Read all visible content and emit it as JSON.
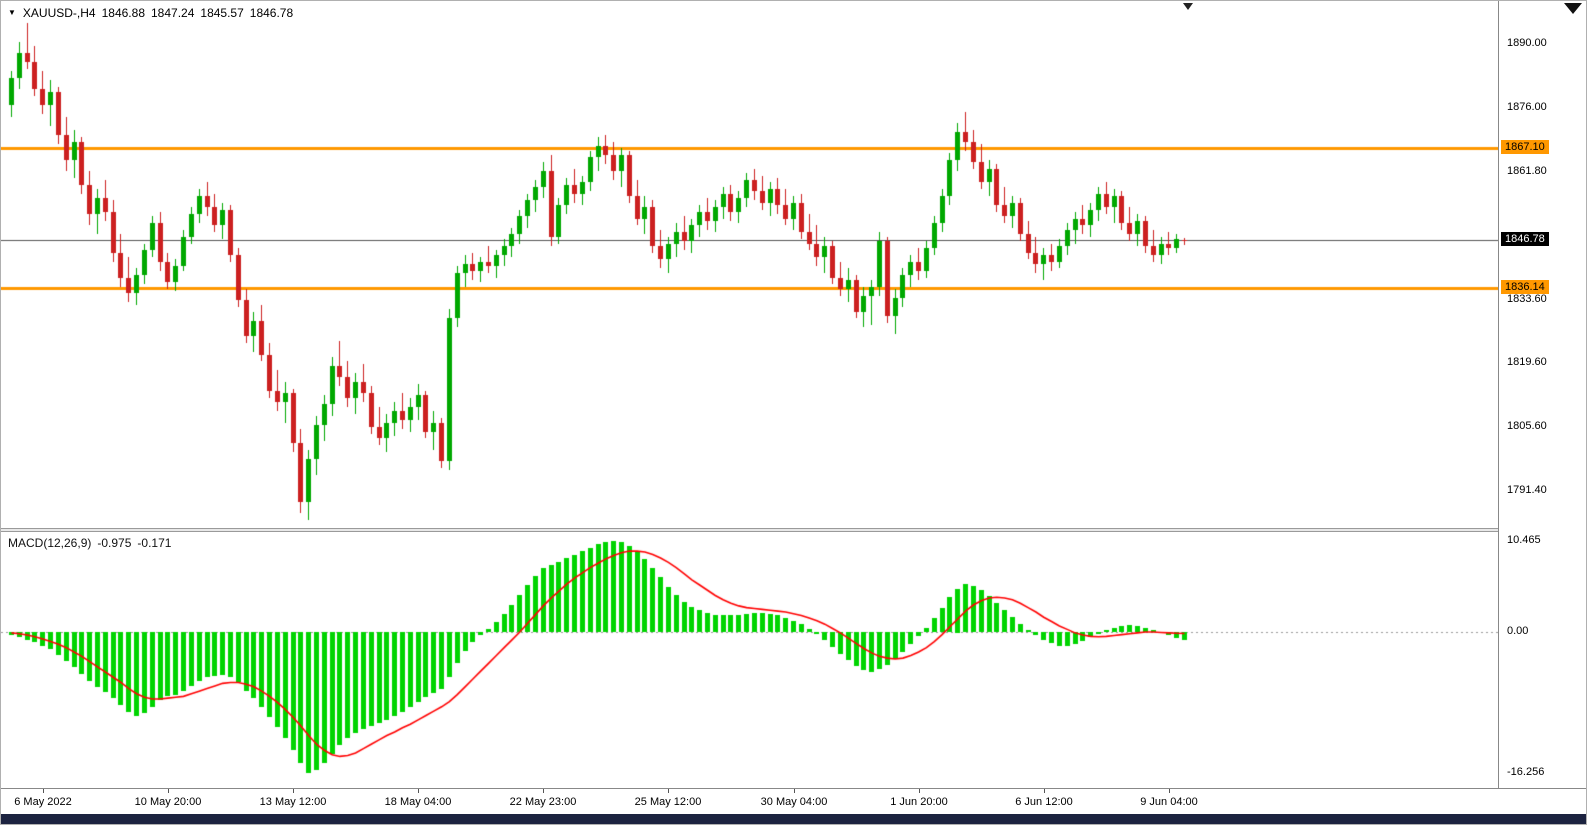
{
  "header": {
    "symbol_timeframe": "XAUUSD-,H4",
    "open": "1846.88",
    "high": "1847.24",
    "low": "1845.57",
    "close": "1846.78"
  },
  "indicator_header": {
    "label": "MACD(12,26,9)",
    "main": "-0.975",
    "signal": "-0.171"
  },
  "icons": {
    "symbol_dropdown": "▼"
  },
  "colors": {
    "up": "#00a800",
    "down": "#cc2020",
    "macd_hist": "#00d400",
    "signal": "#ff0000",
    "hline": "#ff9800",
    "current_line": "#555555",
    "badge_black_bg": "#000000",
    "badge_orange_bg": "#ff9800"
  },
  "chart_data": {
    "type": "candlestick",
    "symbol": "XAUUSD-",
    "timeframe": "H4",
    "current_price": "1846.78",
    "hlines": [
      "1867.10",
      "1836.14"
    ],
    "price_ticks": [
      "1890.00",
      "1876.00",
      "1861.80",
      "1833.60",
      "1819.60",
      "1805.60",
      "1791.40"
    ],
    "time_labels": [
      {
        "text": "6 May 2022",
        "i": 4
      },
      {
        "text": "10 May 20:00",
        "i": 20
      },
      {
        "text": "13 May 12:00",
        "i": 36
      },
      {
        "text": "18 May 04:00",
        "i": 52
      },
      {
        "text": "22 May 23:00",
        "i": 68
      },
      {
        "text": "25 May 12:00",
        "i": 84
      },
      {
        "text": "30 May 04:00",
        "i": 100
      },
      {
        "text": "1 Jun 20:00",
        "i": 116
      },
      {
        "text": "6 Jun 12:00",
        "i": 132
      },
      {
        "text": "9 Jun 04:00",
        "i": 148
      }
    ],
    "candles": [
      [
        1876.5,
        1884,
        1874,
        1882.5
      ],
      [
        1882.5,
        1890.5,
        1880,
        1888
      ],
      [
        1888,
        1894.6,
        1884.5,
        1886
      ],
      [
        1886,
        1889.5,
        1878.5,
        1880
      ],
      [
        1880,
        1884,
        1874.5,
        1876.5
      ],
      [
        1876.5,
        1882,
        1872,
        1879.5
      ],
      [
        1879.5,
        1880.5,
        1868,
        1870
      ],
      [
        1870,
        1874,
        1862,
        1864.5
      ],
      [
        1864.5,
        1871,
        1860.5,
        1868.5
      ],
      [
        1868.5,
        1869.5,
        1857,
        1859
      ],
      [
        1859,
        1862,
        1850,
        1852.5
      ],
      [
        1852.5,
        1858,
        1848,
        1856
      ],
      [
        1856,
        1860,
        1851,
        1853
      ],
      [
        1853,
        1855.5,
        1842,
        1844
      ],
      [
        1844,
        1848,
        1836.5,
        1838.5
      ],
      [
        1838.5,
        1843,
        1833,
        1835
      ],
      [
        1835,
        1840.5,
        1832.5,
        1839
      ],
      [
        1839,
        1846,
        1837,
        1844.5
      ],
      [
        1844.5,
        1852,
        1843,
        1850.5
      ],
      [
        1850.5,
        1853,
        1840,
        1842
      ],
      [
        1842,
        1844,
        1836,
        1837.5
      ],
      [
        1837.5,
        1842.5,
        1835.5,
        1841
      ],
      [
        1841,
        1849,
        1840,
        1847.5
      ],
      [
        1847.5,
        1854,
        1846,
        1852.5
      ],
      [
        1852.5,
        1858,
        1850.5,
        1856.5
      ],
      [
        1856.5,
        1859.5,
        1852,
        1854
      ],
      [
        1854,
        1857,
        1848.5,
        1850
      ],
      [
        1850,
        1855,
        1847,
        1853.5
      ],
      [
        1853.5,
        1854.5,
        1842,
        1843.5
      ],
      [
        1843.5,
        1845,
        1832,
        1833.5
      ],
      [
        1833.5,
        1836,
        1824,
        1825.5
      ],
      [
        1825.5,
        1831,
        1822,
        1829
      ],
      [
        1829,
        1832.5,
        1820,
        1821.5
      ],
      [
        1821.5,
        1824,
        1812,
        1813.5
      ],
      [
        1813.5,
        1818,
        1809,
        1811
      ],
      [
        1811,
        1815.5,
        1806.5,
        1813
      ],
      [
        1813,
        1814,
        1800,
        1802
      ],
      [
        1802,
        1805,
        1786.5,
        1789
      ],
      [
        1789,
        1800.5,
        1785,
        1798.5
      ],
      [
        1798.5,
        1808,
        1795,
        1806
      ],
      [
        1806,
        1812.5,
        1802.5,
        1810.5
      ],
      [
        1810.5,
        1821,
        1808,
        1819
      ],
      [
        1819,
        1824.5,
        1814.5,
        1816.5
      ],
      [
        1816.5,
        1820,
        1810,
        1812
      ],
      [
        1812,
        1817.5,
        1808.5,
        1815.5
      ],
      [
        1815.5,
        1819.5,
        1811,
        1813
      ],
      [
        1813,
        1814.5,
        1804,
        1805.5
      ],
      [
        1805.5,
        1810,
        1801.5,
        1803
      ],
      [
        1803,
        1808.5,
        1800,
        1806.5
      ],
      [
        1806.5,
        1811,
        1803.5,
        1809
      ],
      [
        1809,
        1813,
        1805,
        1807
      ],
      [
        1807,
        1812,
        1804.5,
        1810
      ],
      [
        1810,
        1815,
        1807,
        1812.5
      ],
      [
        1812.5,
        1813.5,
        1803,
        1804.5
      ],
      [
        1804.5,
        1809,
        1800.5,
        1806.5
      ],
      [
        1806.5,
        1807.5,
        1796.5,
        1798
      ],
      [
        1798,
        1831.5,
        1796,
        1829.5
      ],
      [
        1829.5,
        1841,
        1827.5,
        1839.5
      ],
      [
        1839.5,
        1843.5,
        1836.5,
        1841.5
      ],
      [
        1841.5,
        1844,
        1838,
        1840
      ],
      [
        1840,
        1843,
        1837.5,
        1842
      ],
      [
        1842,
        1845.5,
        1839.5,
        1841
      ],
      [
        1841,
        1844.5,
        1838.5,
        1843.5
      ],
      [
        1843.5,
        1847,
        1841,
        1845.5
      ],
      [
        1845.5,
        1849.5,
        1843,
        1848
      ],
      [
        1848,
        1853.5,
        1846,
        1852
      ],
      [
        1852,
        1857,
        1849.5,
        1855.5
      ],
      [
        1855.5,
        1860,
        1853,
        1858.5
      ],
      [
        1858.5,
        1864,
        1856,
        1862
      ],
      [
        1862,
        1865.5,
        1845.5,
        1847.5
      ],
      [
        1847.5,
        1856,
        1846,
        1854.5
      ],
      [
        1854.5,
        1860.5,
        1852.5,
        1859
      ],
      [
        1859,
        1862.5,
        1855,
        1857
      ],
      [
        1857,
        1861,
        1854.5,
        1859.5
      ],
      [
        1859.5,
        1866.5,
        1857.5,
        1865
      ],
      [
        1865,
        1869.5,
        1862,
        1867.5
      ],
      [
        1867.5,
        1870,
        1863.5,
        1865.5
      ],
      [
        1865.5,
        1868.5,
        1860,
        1862
      ],
      [
        1862,
        1867,
        1858.5,
        1865.5
      ],
      [
        1865.5,
        1866.5,
        1855,
        1856.5
      ],
      [
        1856.5,
        1860,
        1850,
        1851.5
      ],
      [
        1851.5,
        1856.5,
        1848,
        1854
      ],
      [
        1854,
        1855.5,
        1844,
        1845.5
      ],
      [
        1845.5,
        1849,
        1840.5,
        1842.5
      ],
      [
        1842.5,
        1847.5,
        1839.5,
        1846
      ],
      [
        1846,
        1850.5,
        1843,
        1848.5
      ],
      [
        1848.5,
        1852,
        1844.5,
        1846.5
      ],
      [
        1846.5,
        1851.5,
        1844,
        1850
      ],
      [
        1850,
        1854.5,
        1847.5,
        1853
      ],
      [
        1853,
        1856,
        1849,
        1851
      ],
      [
        1851,
        1855.5,
        1848.5,
        1854
      ],
      [
        1854,
        1858.5,
        1851.5,
        1857
      ],
      [
        1857,
        1859,
        1851,
        1853
      ],
      [
        1853,
        1857.5,
        1850.5,
        1856
      ],
      [
        1856,
        1861.5,
        1854,
        1860
      ],
      [
        1860,
        1862.5,
        1855.5,
        1857.5
      ],
      [
        1857.5,
        1861,
        1853.5,
        1855
      ],
      [
        1855,
        1859.5,
        1852,
        1858
      ],
      [
        1858,
        1860.5,
        1852.5,
        1854.5
      ],
      [
        1854.5,
        1858,
        1850,
        1851.5
      ],
      [
        1851.5,
        1856.5,
        1849,
        1855
      ],
      [
        1855,
        1857,
        1847,
        1848.5
      ],
      [
        1848.5,
        1852.5,
        1844.5,
        1846
      ],
      [
        1846,
        1850,
        1841,
        1843
      ],
      [
        1843,
        1847.5,
        1839.5,
        1845.5
      ],
      [
        1845.5,
        1846.5,
        1837,
        1838.5
      ],
      [
        1838.5,
        1842,
        1834.5,
        1836
      ],
      [
        1836,
        1840.5,
        1833,
        1838
      ],
      [
        1838,
        1839,
        1829.5,
        1831
      ],
      [
        1831,
        1836.5,
        1827.5,
        1834.5
      ],
      [
        1834.5,
        1838,
        1828,
        1836.5
      ],
      [
        1836.5,
        1848.5,
        1834.5,
        1846.5
      ],
      [
        1846.5,
        1847.5,
        1828.5,
        1830
      ],
      [
        1830,
        1836,
        1826,
        1834
      ],
      [
        1834,
        1840.5,
        1832,
        1839
      ],
      [
        1839,
        1843.5,
        1836.5,
        1842
      ],
      [
        1842,
        1845,
        1838,
        1840
      ],
      [
        1840,
        1846.5,
        1838.5,
        1845
      ],
      [
        1845,
        1852,
        1843.5,
        1850.5
      ],
      [
        1850.5,
        1858,
        1848.5,
        1856.5
      ],
      [
        1856.5,
        1866,
        1854.5,
        1864.5
      ],
      [
        1864.5,
        1872.5,
        1862,
        1870.5
      ],
      [
        1870.5,
        1875,
        1866.5,
        1868.5
      ],
      [
        1868.5,
        1871,
        1862.5,
        1864
      ],
      [
        1864,
        1868,
        1858,
        1859.5
      ],
      [
        1859.5,
        1864.5,
        1856.5,
        1862.5
      ],
      [
        1862.5,
        1863.5,
        1853,
        1854.5
      ],
      [
        1854.5,
        1858.5,
        1850.5,
        1852
      ],
      [
        1852,
        1856.5,
        1849.5,
        1855
      ],
      [
        1855,
        1856,
        1846.5,
        1848
      ],
      [
        1848,
        1851,
        1842.5,
        1844
      ],
      [
        1844,
        1847.5,
        1839.5,
        1841.5
      ],
      [
        1841.5,
        1845,
        1838,
        1843.5
      ],
      [
        1843.5,
        1846,
        1840,
        1842
      ],
      [
        1842,
        1847,
        1840.5,
        1845.5
      ],
      [
        1845.5,
        1850.5,
        1843.5,
        1849
      ],
      [
        1849,
        1853,
        1846,
        1851.5
      ],
      [
        1851.5,
        1854.5,
        1848,
        1850
      ],
      [
        1850,
        1855,
        1847.5,
        1853.5
      ],
      [
        1853.5,
        1858.5,
        1851,
        1857
      ],
      [
        1857,
        1859.5,
        1852.5,
        1854
      ],
      [
        1854,
        1858,
        1850.5,
        1856.5
      ],
      [
        1856.5,
        1857.5,
        1849,
        1850.5
      ],
      [
        1850.5,
        1854,
        1846.5,
        1848
      ],
      [
        1848,
        1852.5,
        1845.5,
        1851
      ],
      [
        1851,
        1852,
        1844,
        1845.5
      ],
      [
        1845.5,
        1849,
        1842,
        1843.5
      ],
      [
        1843.5,
        1847.5,
        1841.5,
        1846
      ],
      [
        1846,
        1848.5,
        1843.5,
        1845
      ],
      [
        1845,
        1848,
        1844,
        1847
      ],
      [
        1846.88,
        1847.24,
        1845.57,
        1846.78
      ]
    ],
    "indicator": {
      "name": "MACD",
      "params": "12,26,9",
      "ticks": [
        "10.465",
        "0.00",
        "-16.256"
      ],
      "histogram": [
        -0.3,
        -0.6,
        -0.9,
        -1.2,
        -1.6,
        -2.0,
        -2.6,
        -3.3,
        -4.0,
        -4.8,
        -5.6,
        -6.3,
        -6.9,
        -7.6,
        -8.4,
        -9.2,
        -9.6,
        -9.3,
        -8.6,
        -7.8,
        -7.4,
        -7.2,
        -6.8,
        -6.2,
        -5.6,
        -5.2,
        -5.0,
        -4.9,
        -5.2,
        -5.8,
        -6.8,
        -7.6,
        -8.6,
        -9.8,
        -10.9,
        -12.2,
        -13.6,
        -15.0,
        -16.256,
        -15.9,
        -15.1,
        -14.0,
        -13.0,
        -12.2,
        -11.6,
        -11.1,
        -10.8,
        -10.5,
        -10.1,
        -9.7,
        -9.2,
        -8.6,
        -8.0,
        -7.5,
        -7.0,
        -6.5,
        -5.2,
        -3.6,
        -2.2,
        -1.2,
        -0.4,
        0.4,
        1.2,
        2.1,
        3.1,
        4.2,
        5.4,
        6.4,
        7.3,
        7.7,
        8.1,
        8.5,
        8.9,
        9.3,
        9.7,
        10.1,
        10.35,
        10.465,
        10.3,
        9.9,
        9.2,
        8.4,
        7.4,
        6.3,
        5.2,
        4.3,
        3.5,
        2.9,
        2.5,
        2.2,
        2.0,
        1.9,
        1.9,
        2.0,
        2.1,
        2.2,
        2.2,
        2.1,
        1.9,
        1.6,
        1.3,
        0.9,
        0.4,
        -0.2,
        -0.9,
        -1.7,
        -2.5,
        -3.2,
        -3.9,
        -4.4,
        -4.6,
        -4.3,
        -3.8,
        -3.1,
        -2.3,
        -1.4,
        -0.5,
        0.5,
        1.6,
        2.8,
        4.0,
        5.0,
        5.5,
        5.3,
        4.8,
        4.1,
        3.3,
        2.5,
        1.7,
        0.9,
        0.2,
        -0.4,
        -0.9,
        -1.3,
        -1.6,
        -1.6,
        -1.4,
        -1.0,
        -0.6,
        -0.2,
        0.2,
        0.5,
        0.7,
        0.8,
        0.7,
        0.5,
        0.2,
        -0.1,
        -0.4,
        -0.7,
        -0.975
      ],
      "signal": [
        -0.1,
        -0.2,
        -0.35,
        -0.55,
        -0.8,
        -1.1,
        -1.4,
        -1.8,
        -2.3,
        -2.8,
        -3.4,
        -4.0,
        -4.6,
        -5.2,
        -5.8,
        -6.5,
        -7.1,
        -7.5,
        -7.7,
        -7.7,
        -7.6,
        -7.5,
        -7.4,
        -7.1,
        -6.8,
        -6.5,
        -6.2,
        -5.9,
        -5.8,
        -5.8,
        -6.0,
        -6.3,
        -6.8,
        -7.4,
        -8.1,
        -8.9,
        -9.8,
        -10.8,
        -11.9,
        -12.9,
        -13.6,
        -14.1,
        -14.3,
        -14.2,
        -13.9,
        -13.4,
        -12.9,
        -12.4,
        -11.9,
        -11.5,
        -11.0,
        -10.6,
        -10.1,
        -9.6,
        -9.1,
        -8.6,
        -8.0,
        -7.2,
        -6.3,
        -5.4,
        -4.5,
        -3.6,
        -2.7,
        -1.8,
        -0.9,
        0.0,
        1.0,
        2.0,
        3.0,
        3.9,
        4.7,
        5.5,
        6.2,
        6.8,
        7.4,
        7.9,
        8.4,
        8.8,
        9.1,
        9.3,
        9.3,
        9.2,
        8.9,
        8.5,
        8.0,
        7.4,
        6.7,
        6.0,
        5.4,
        4.8,
        4.2,
        3.7,
        3.3,
        3.0,
        2.8,
        2.7,
        2.6,
        2.5,
        2.4,
        2.3,
        2.1,
        1.9,
        1.6,
        1.3,
        0.9,
        0.4,
        -0.1,
        -0.7,
        -1.3,
        -1.9,
        -2.4,
        -2.8,
        -3.0,
        -3.1,
        -3.0,
        -2.7,
        -2.3,
        -1.8,
        -1.1,
        -0.3,
        0.6,
        1.5,
        2.4,
        3.1,
        3.6,
        3.9,
        4.0,
        3.9,
        3.7,
        3.3,
        2.8,
        2.3,
        1.7,
        1.2,
        0.7,
        0.3,
        -0.1,
        -0.35,
        -0.5,
        -0.55,
        -0.5,
        -0.4,
        -0.3,
        -0.2,
        -0.1,
        0.0,
        0.0,
        -0.05,
        -0.1,
        -0.14,
        -0.171
      ]
    }
  }
}
